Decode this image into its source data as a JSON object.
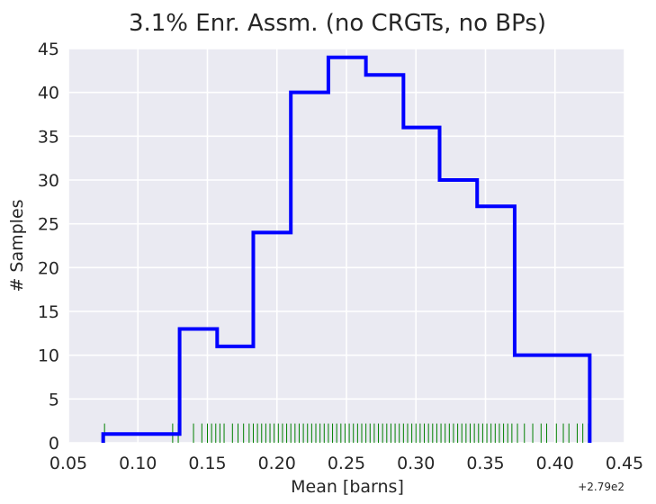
{
  "chart_data": {
    "type": "histogram",
    "title": "3.1% Enr. Assm. (no CRGTs, no BPs)",
    "xlabel": "Mean [barns]",
    "ylabel": "# Samples",
    "x_offset_label": "+2.79e2",
    "xlim": [
      0.05,
      0.45
    ],
    "ylim": [
      0,
      45
    ],
    "xticks": [
      0.05,
      0.1,
      0.15,
      0.2,
      0.25,
      0.3,
      0.35,
      0.4,
      0.45
    ],
    "xtick_labels": [
      "0.05",
      "0.10",
      "0.15",
      "0.20",
      "0.25",
      "0.30",
      "0.35",
      "0.40",
      "0.45"
    ],
    "yticks": [
      0,
      5,
      10,
      15,
      20,
      25,
      30,
      35,
      40,
      45
    ],
    "ytick_labels": [
      "0",
      "5",
      "10",
      "15",
      "20",
      "25",
      "30",
      "35",
      "40",
      "45"
    ],
    "grid": true,
    "bin_edges": [
      0.075,
      0.13,
      0.157,
      0.183,
      0.21,
      0.237,
      0.264,
      0.291,
      0.317,
      0.344,
      0.371,
      0.425
    ],
    "counts": [
      1,
      13,
      11,
      24,
      40,
      44,
      42,
      36,
      30,
      27,
      10
    ],
    "rug": {
      "height": 2.2,
      "positions": [
        0.076,
        0.125,
        0.129,
        0.14,
        0.146,
        0.15,
        0.153,
        0.156,
        0.159,
        0.162,
        0.168,
        0.172,
        0.176,
        0.18,
        0.183,
        0.186,
        0.189,
        0.192,
        0.195,
        0.198,
        0.201,
        0.204,
        0.207,
        0.21,
        0.213,
        0.216,
        0.219,
        0.222,
        0.225,
        0.228,
        0.231,
        0.234,
        0.237,
        0.24,
        0.243,
        0.246,
        0.249,
        0.252,
        0.255,
        0.258,
        0.261,
        0.264,
        0.267,
        0.27,
        0.273,
        0.276,
        0.279,
        0.282,
        0.285,
        0.288,
        0.291,
        0.294,
        0.297,
        0.3,
        0.303,
        0.306,
        0.309,
        0.312,
        0.315,
        0.318,
        0.321,
        0.324,
        0.327,
        0.33,
        0.333,
        0.336,
        0.339,
        0.342,
        0.345,
        0.348,
        0.351,
        0.354,
        0.357,
        0.36,
        0.363,
        0.366,
        0.369,
        0.373,
        0.378,
        0.384,
        0.39,
        0.394,
        0.401,
        0.406,
        0.41,
        0.416,
        0.42,
        0.424
      ]
    },
    "colors": {
      "background": "#eaeaf2",
      "grid": "#ffffff",
      "histogram": "#0000ff",
      "rug": "#008000",
      "text": "#262626"
    }
  }
}
